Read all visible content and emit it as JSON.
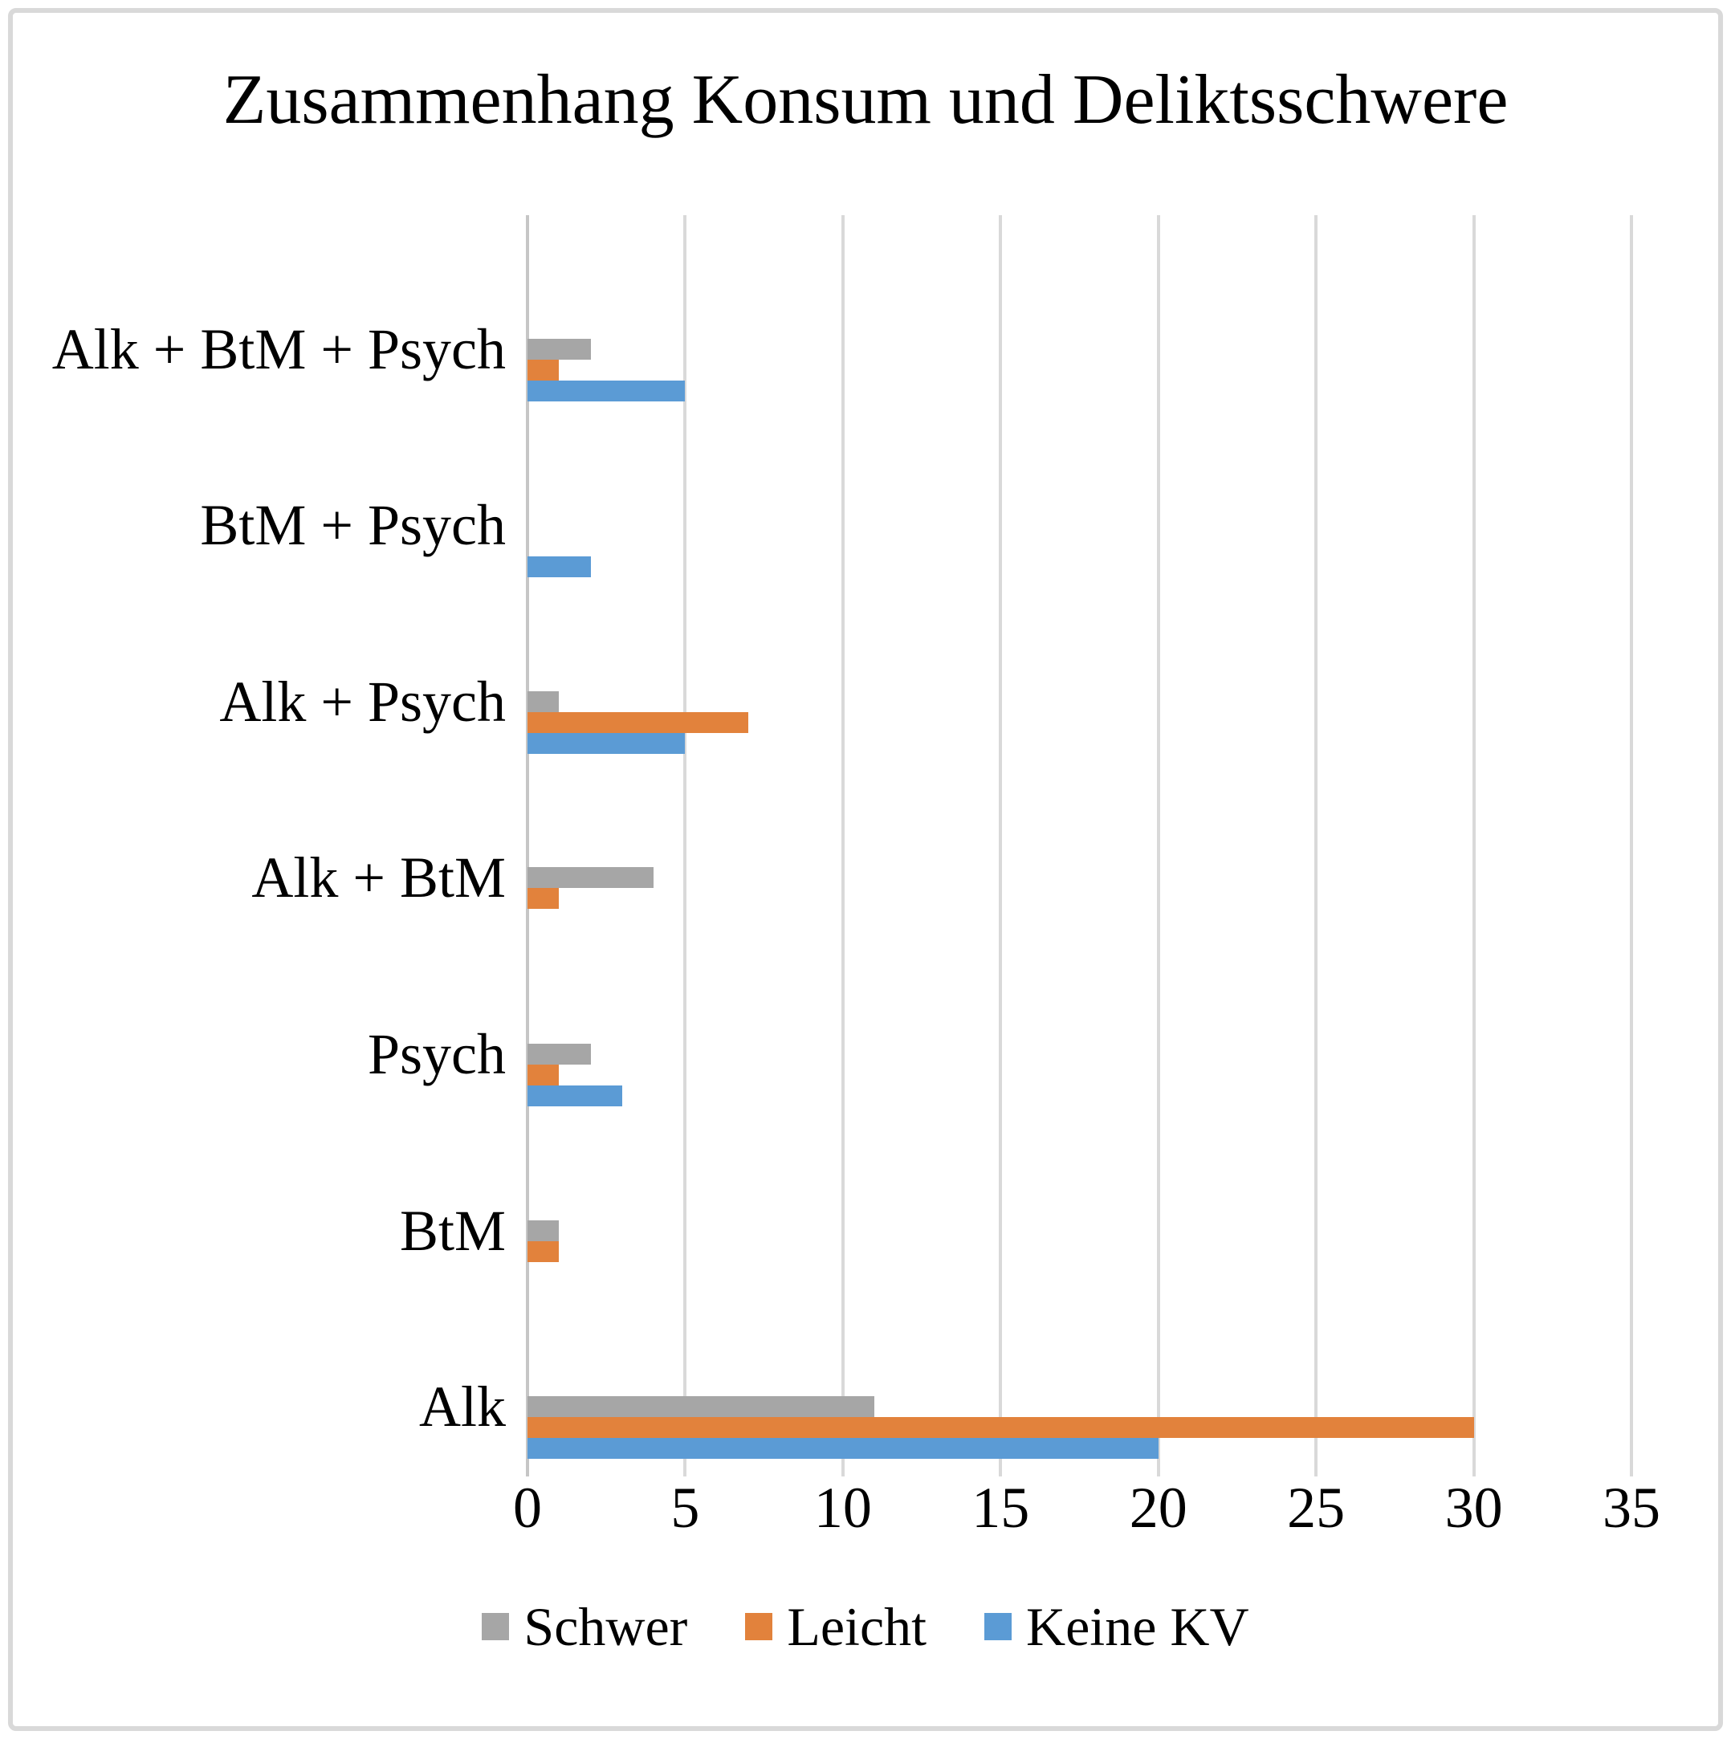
{
  "title": "Zusammenhang Konsum und Deliktsschwere",
  "chart_data": {
    "type": "bar",
    "orientation": "horizontal",
    "title": "Zusammenhang Konsum und Deliktsschwere",
    "xlabel": "",
    "ylabel": "",
    "categories": [
      "Alk + BtM + Psych",
      "BtM + Psych",
      "Alk + Psych",
      "Alk + BtM",
      "Psych",
      "BtM",
      "Alk"
    ],
    "category_order": "top-to-bottom",
    "series": [
      {
        "name": "Schwer",
        "color": "#a6a6a6",
        "values": [
          2,
          0,
          1,
          4,
          2,
          1,
          11
        ]
      },
      {
        "name": "Leicht",
        "color": "#e2823c",
        "values": [
          1,
          0,
          7,
          1,
          1,
          1,
          30
        ]
      },
      {
        "name": "Keine KV",
        "color": "#5b9bd5",
        "values": [
          5,
          2,
          5,
          0,
          3,
          0,
          20
        ]
      }
    ],
    "series_order_within_group": "top-to-bottom",
    "xlim": [
      0,
      35
    ],
    "x_ticks": [
      0,
      5,
      10,
      15,
      20,
      25,
      30,
      35
    ],
    "grid": true,
    "gridline_color": "#d9d9d9",
    "axis_line_color": "#c6c6c6",
    "legend_position": "bottom",
    "legend": [
      "Schwer",
      "Leicht",
      "Keine KV"
    ]
  },
  "x_axis": {
    "tick_labels": [
      "0",
      "5",
      "10",
      "15",
      "20",
      "25",
      "30",
      "35"
    ]
  },
  "legend": {
    "items": [
      {
        "label": "Schwer",
        "color": "#a6a6a6"
      },
      {
        "label": "Leicht",
        "color": "#e2823c"
      },
      {
        "label": "Keine KV",
        "color": "#5b9bd5"
      }
    ]
  },
  "frame": {
    "border_color": "#d9d9d9",
    "background": "#ffffff"
  }
}
